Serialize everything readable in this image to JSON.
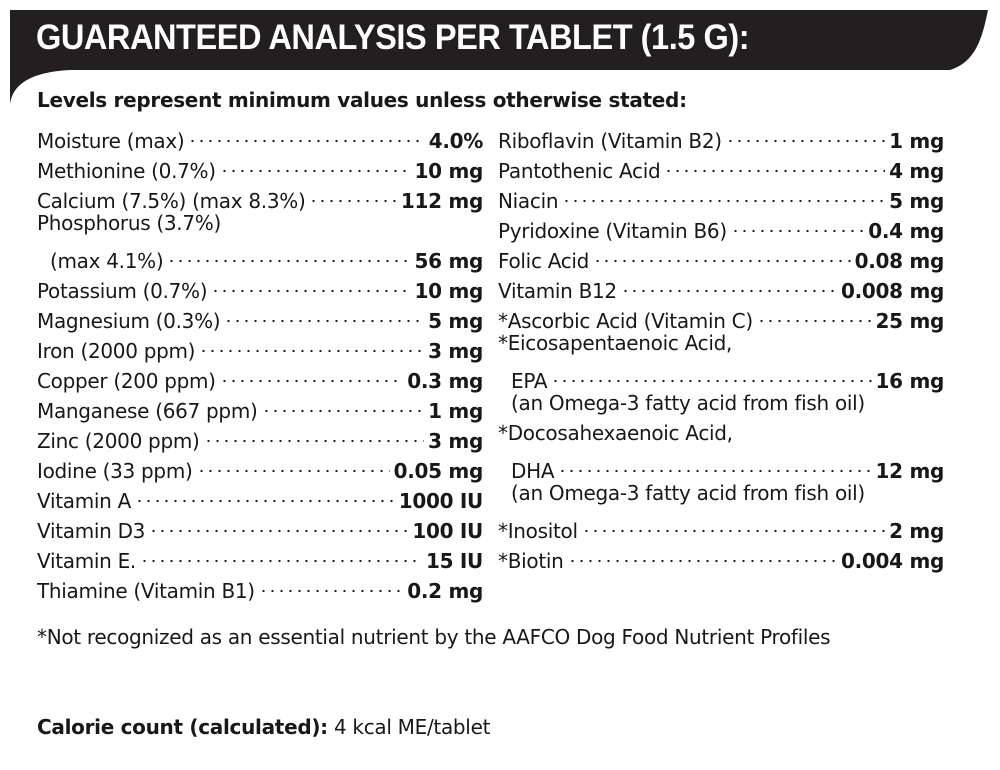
{
  "header": {
    "title": "GUARANTEED ANALYSIS PER TABLET (1.5 G):",
    "band_color": "#231f20"
  },
  "subtitle": "Levels represent minimum values unless otherwise stated:",
  "left_column": [
    {
      "label": "Moisture (max)",
      "value": "4.0%"
    },
    {
      "label": "Methionine (0.7%)",
      "value": "10 mg"
    },
    {
      "label": "Calcium (7.5%) (max 8.3%)",
      "value": "112 mg"
    },
    {
      "label": "Phosphorus (3.7%)",
      "value": null
    },
    {
      "label": "(max 4.1%)",
      "value": "56 mg",
      "indent": true
    },
    {
      "label": "Potassium (0.7%)",
      "value": "10 mg"
    },
    {
      "label": "Magnesium (0.3%)",
      "value": "5 mg"
    },
    {
      "label": "Iron (2000 ppm)",
      "value": "3 mg"
    },
    {
      "label": "Copper (200 ppm)",
      "value": "0.3 mg"
    },
    {
      "label": "Manganese (667 ppm)",
      "value": "1 mg"
    },
    {
      "label": "Zinc (2000 ppm)",
      "value": "3 mg"
    },
    {
      "label": "Iodine (33 ppm)",
      "value": "0.05 mg"
    },
    {
      "label": "Vitamin A",
      "value": "1000 IU"
    },
    {
      "label": "Vitamin D3",
      "value": "100 IU"
    },
    {
      "label": "Vitamin E.",
      "value": "15 IU"
    },
    {
      "label": "Thiamine (Vitamin B1)",
      "value": "0.2 mg"
    }
  ],
  "right_column": [
    {
      "label": "Riboflavin (Vitamin B2)",
      "value": "1 mg"
    },
    {
      "label": "Pantothenic Acid",
      "value": "4 mg"
    },
    {
      "label": "Niacin",
      "value": "5 mg"
    },
    {
      "label": "Pyridoxine (Vitamin B6)",
      "value": "0.4 mg"
    },
    {
      "label": "Folic Acid",
      "value": "0.08 mg"
    },
    {
      "label": "Vitamin B12",
      "value": "0.008 mg"
    },
    {
      "label": "*Ascorbic Acid (Vitamin C)",
      "value": "25 mg"
    },
    {
      "label": "*Eicosapentaenoic Acid,",
      "value": null
    },
    {
      "label": "EPA",
      "value": "16 mg",
      "indent": true
    },
    {
      "label": "(an Omega-3 fatty acid from fish oil)",
      "value": null,
      "indent": true
    },
    {
      "label": "*Docosahexaenoic Acid,",
      "value": null
    },
    {
      "label": "DHA",
      "value": "12 mg",
      "indent": true
    },
    {
      "label": "(an Omega-3 fatty acid from fish oil)",
      "value": null,
      "indent": true
    },
    {
      "label": "*Inositol",
      "value": "2 mg"
    },
    {
      "label": "*Biotin",
      "value": "0.004 mg"
    }
  ],
  "footnote": "*Not recognized as an essential nutrient by the AAFCO Dog Food Nutrient Profiles",
  "calorie": {
    "label": "Calorie count (calculated):",
    "value": "4 kcal ME/tablet"
  }
}
